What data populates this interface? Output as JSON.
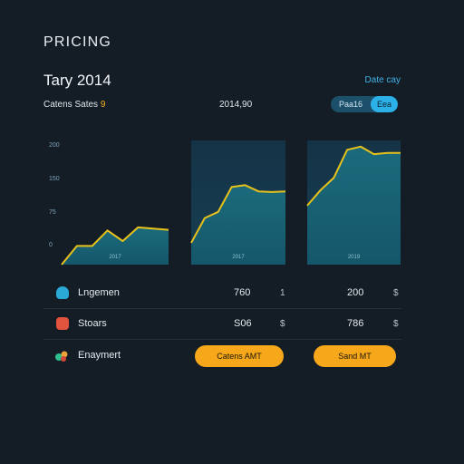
{
  "header": {
    "eyebrow": "PRICING",
    "title": "Tary 2014",
    "date_link": "Date cay",
    "sales_label": "Catens Sates",
    "sales_accent": "9",
    "sales_value": "2014,90",
    "toggle": {
      "option_a": "Paa16",
      "option_b": "Eea"
    }
  },
  "chart_data": {
    "type": "line",
    "y_ticks": [
      "200",
      "150",
      "75",
      "0"
    ],
    "panels": [
      {
        "label": "2017",
        "y": [
          0,
          30,
          30,
          55,
          38,
          60,
          58,
          56
        ]
      },
      {
        "label": "2017",
        "y": [
          35,
          75,
          85,
          125,
          128,
          118,
          117,
          118
        ]
      },
      {
        "label": "2019",
        "y": [
          95,
          120,
          140,
          185,
          190,
          178,
          180,
          180
        ]
      }
    ],
    "ylim": [
      0,
      200
    ]
  },
  "rows": [
    {
      "icon": "shield-icon",
      "label": "Lngemen",
      "value_a": "760",
      "sym_a": "1",
      "value_b": "200",
      "sym_b": "$"
    },
    {
      "icon": "grid-icon",
      "label": "Stoars",
      "value_a": "S06",
      "sym_a": "$",
      "value_b": "786",
      "sym_b": "$"
    },
    {
      "icon": "leaf-icon",
      "label": "Enaymert"
    }
  ],
  "buttons": {
    "left_label": "Catens AMT",
    "right_label": "Sand MT"
  },
  "colors": {
    "background": "#141c26",
    "accent_yellow": "#f6a81a",
    "line_yellow": "#e8c21a",
    "area_teal": "#1a6478",
    "link_blue": "#3fb3e6"
  }
}
